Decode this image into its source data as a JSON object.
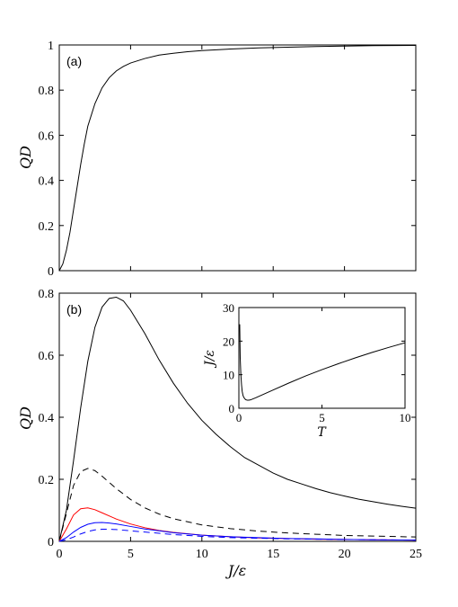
{
  "chart_data": [
    {
      "panel_label": "(a)",
      "type": "line",
      "xlabel": "",
      "ylabel": "QD",
      "xlim": [
        0,
        25
      ],
      "ylim": [
        0,
        1
      ],
      "x_ticks": [
        "0",
        "5",
        "10",
        "15",
        "20",
        "25"
      ],
      "x_tick_labels_shown": false,
      "y_ticks": [
        "0",
        "0.2",
        "0.4",
        "0.6",
        "0.8",
        "1"
      ],
      "grid": false,
      "series": [
        {
          "color": "#000000",
          "dash": "solid",
          "x": [
            0,
            0.25,
            0.5,
            0.75,
            1,
            1.25,
            1.5,
            1.75,
            2,
            2.5,
            3,
            3.5,
            4,
            4.5,
            5,
            6,
            7,
            8,
            9,
            10,
            12,
            14,
            16,
            18,
            20,
            22,
            25
          ],
          "y": [
            0,
            0.03,
            0.09,
            0.17,
            0.27,
            0.37,
            0.47,
            0.56,
            0.64,
            0.74,
            0.81,
            0.855,
            0.885,
            0.905,
            0.92,
            0.94,
            0.955,
            0.963,
            0.97,
            0.975,
            0.982,
            0.987,
            0.99,
            0.993,
            0.995,
            0.997,
            0.998
          ]
        }
      ]
    },
    {
      "panel_label": "(b)",
      "type": "line",
      "xlabel": "J/ε",
      "ylabel": "QD",
      "xlim": [
        0,
        25
      ],
      "ylim": [
        0,
        0.8
      ],
      "x_ticks": [
        "0",
        "5",
        "10",
        "15",
        "20",
        "25"
      ],
      "y_ticks": [
        "0",
        "0.2",
        "0.4",
        "0.6",
        "0.8"
      ],
      "grid": false,
      "series": [
        {
          "color": "#000000",
          "dash": "solid",
          "x": [
            0,
            0.5,
            1,
            1.5,
            2,
            2.5,
            3,
            3.5,
            4,
            4.5,
            5,
            6,
            7,
            8,
            9,
            10,
            11,
            12,
            13,
            14,
            15,
            16,
            17,
            18,
            19,
            20,
            21,
            22,
            23,
            24,
            25
          ],
          "y": [
            0,
            0.1,
            0.26,
            0.43,
            0.58,
            0.69,
            0.755,
            0.783,
            0.787,
            0.775,
            0.745,
            0.67,
            0.585,
            0.51,
            0.445,
            0.39,
            0.345,
            0.305,
            0.27,
            0.245,
            0.22,
            0.2,
            0.185,
            0.17,
            0.157,
            0.146,
            0.136,
            0.128,
            0.12,
            0.113,
            0.107
          ]
        },
        {
          "color": "#000000",
          "dash": "dashed",
          "x": [
            0,
            0.5,
            1,
            1.5,
            2,
            2.5,
            3,
            4,
            5,
            6,
            7,
            8,
            10,
            12,
            14,
            16,
            18,
            20,
            22,
            25
          ],
          "y": [
            0,
            0.09,
            0.18,
            0.225,
            0.235,
            0.228,
            0.21,
            0.17,
            0.135,
            0.108,
            0.088,
            0.073,
            0.053,
            0.041,
            0.033,
            0.027,
            0.023,
            0.019,
            0.017,
            0.014
          ]
        },
        {
          "color": "#ff0000",
          "dash": "solid",
          "x": [
            0,
            0.5,
            1,
            1.5,
            2,
            2.5,
            3,
            4,
            5,
            6,
            7,
            8,
            10,
            12,
            14,
            16,
            18,
            20,
            22,
            25
          ],
          "y": [
            0,
            0.04,
            0.085,
            0.105,
            0.108,
            0.102,
            0.092,
            0.072,
            0.056,
            0.044,
            0.035,
            0.029,
            0.02,
            0.015,
            0.011,
            0.009,
            0.007,
            0.006,
            0.005,
            0.004
          ]
        },
        {
          "color": "#0000ff",
          "dash": "solid",
          "x": [
            0,
            0.5,
            1,
            1.5,
            2,
            2.5,
            3,
            3.5,
            4,
            5,
            6,
            7,
            8,
            10,
            12,
            14,
            16,
            18,
            20,
            22,
            25
          ],
          "y": [
            0,
            0.012,
            0.03,
            0.045,
            0.055,
            0.06,
            0.061,
            0.059,
            0.056,
            0.048,
            0.04,
            0.034,
            0.028,
            0.02,
            0.015,
            0.012,
            0.009,
            0.008,
            0.006,
            0.005,
            0.004
          ]
        },
        {
          "color": "#0000ff",
          "dash": "dashed",
          "x": [
            0,
            0.5,
            1,
            1.5,
            2,
            2.5,
            3,
            3.5,
            4,
            5,
            6,
            7,
            8,
            10,
            12,
            14,
            16,
            18,
            20,
            22,
            25
          ],
          "y": [
            0,
            0.005,
            0.014,
            0.024,
            0.032,
            0.037,
            0.039,
            0.039,
            0.038,
            0.034,
            0.03,
            0.026,
            0.022,
            0.016,
            0.012,
            0.01,
            0.008,
            0.007,
            0.006,
            0.005,
            0.004
          ]
        }
      ],
      "inset": {
        "type": "line",
        "xlabel": "T",
        "ylabel": "J/ε",
        "xlim": [
          0,
          10
        ],
        "ylim": [
          0,
          30
        ],
        "x_ticks": [
          "0",
          "5",
          "10"
        ],
        "y_ticks": [
          "0",
          "10",
          "20",
          "30"
        ],
        "series": [
          {
            "color": "#000000",
            "dash": "solid",
            "x": [
              0.05,
              0.08,
              0.12,
              0.16,
              0.2,
              0.25,
              0.3,
              0.4,
              0.5,
              0.6,
              0.7,
              0.8,
              1,
              1.5,
              2,
              3,
              4,
              5,
              6,
              7,
              8,
              9,
              10
            ],
            "y": [
              25,
              15,
              10,
              7,
              5,
              3.8,
              3.2,
              2.6,
              2.4,
              2.4,
              2.5,
              2.7,
              3.1,
              4.2,
              5.3,
              7.5,
              9.6,
              11.5,
              13.3,
              15,
              16.6,
              18.1,
              19.5
            ]
          }
        ]
      }
    }
  ]
}
